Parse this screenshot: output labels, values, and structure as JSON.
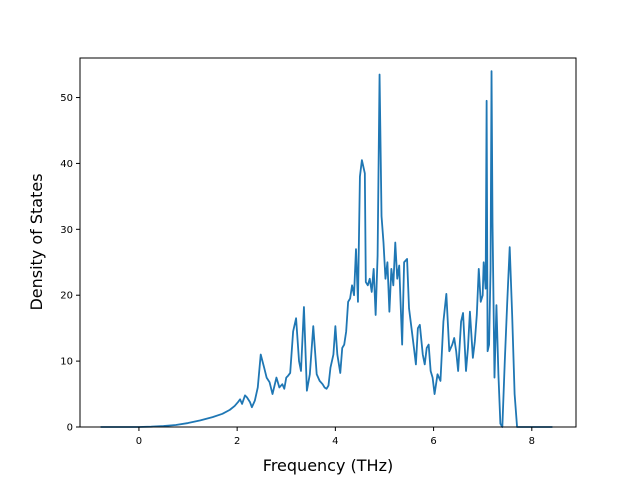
{
  "colors": {
    "line": "#1f77b4",
    "axes": "#000000",
    "background": "#ffffff"
  },
  "chart_data": {
    "type": "line",
    "title": "",
    "xlabel": "Frequency (THz)",
    "ylabel": "Density of States",
    "xlim": [
      -1.2,
      8.9
    ],
    "ylim": [
      0,
      56
    ],
    "xticks": [
      0,
      2,
      4,
      6,
      8
    ],
    "xtick_labels": [
      "0",
      "2",
      "4",
      "6",
      "8"
    ],
    "yticks": [
      0,
      10,
      20,
      30,
      40,
      50
    ],
    "ytick_labels": [
      "0",
      "10",
      "20",
      "30",
      "40",
      "50"
    ],
    "grid": false,
    "legend": "none",
    "series": [
      {
        "color": "#1f77b4",
        "x": [
          -0.78,
          0.0,
          0.25,
          0.5,
          0.75,
          1.0,
          1.25,
          1.5,
          1.7,
          1.85,
          1.95,
          2.02,
          2.06,
          2.1,
          2.16,
          2.2,
          2.26,
          2.3,
          2.36,
          2.42,
          2.48,
          2.55,
          2.6,
          2.66,
          2.72,
          2.8,
          2.86,
          2.92,
          2.96,
          3.0,
          3.04,
          3.08,
          3.14,
          3.2,
          3.26,
          3.3,
          3.36,
          3.42,
          3.48,
          3.55,
          3.62,
          3.68,
          3.74,
          3.78,
          3.82,
          3.86,
          3.9,
          3.96,
          4.0,
          4.04,
          4.1,
          4.14,
          4.18,
          4.22,
          4.26,
          4.3,
          4.34,
          4.38,
          4.42,
          4.46,
          4.5,
          4.54,
          4.6,
          4.62,
          4.66,
          4.7,
          4.74,
          4.78,
          4.82,
          4.86,
          4.9,
          4.94,
          4.98,
          5.02,
          5.06,
          5.1,
          5.14,
          5.18,
          5.22,
          5.26,
          5.3,
          5.36,
          5.4,
          5.46,
          5.5,
          5.55,
          5.6,
          5.64,
          5.68,
          5.72,
          5.78,
          5.82,
          5.86,
          5.9,
          5.94,
          5.98,
          6.02,
          6.08,
          6.14,
          6.2,
          6.26,
          6.32,
          6.38,
          6.42,
          6.46,
          6.5,
          6.56,
          6.6,
          6.66,
          6.7,
          6.74,
          6.8,
          6.84,
          6.88,
          6.92,
          6.96,
          7.0,
          7.02,
          7.04,
          7.06,
          7.08,
          7.1,
          7.13,
          7.16,
          7.18,
          7.2,
          7.24,
          7.28,
          7.32,
          7.36,
          7.4,
          7.45,
          7.5,
          7.55,
          7.6,
          7.65,
          7.7,
          7.75,
          8.0,
          8.42
        ],
        "y": [
          0,
          0,
          0.05,
          0.15,
          0.3,
          0.6,
          1.0,
          1.5,
          2.0,
          2.6,
          3.2,
          3.8,
          4.2,
          3.5,
          4.8,
          4.5,
          3.8,
          3.0,
          4.0,
          6.0,
          11.0,
          9.0,
          7.5,
          6.8,
          5.0,
          7.5,
          6.0,
          6.5,
          5.8,
          7.5,
          7.8,
          8.2,
          14.5,
          16.5,
          10.0,
          8.5,
          18.2,
          5.5,
          8.0,
          15.3,
          8.0,
          7.0,
          6.5,
          6.0,
          5.8,
          6.3,
          9.0,
          11.0,
          15.3,
          11.0,
          8.2,
          12.0,
          12.5,
          14.5,
          19.0,
          19.5,
          21.5,
          20.0,
          27.0,
          19.0,
          38.0,
          40.5,
          38.5,
          22.0,
          21.5,
          22.5,
          20.5,
          24.0,
          17.0,
          26.0,
          53.5,
          32.0,
          28.0,
          22.5,
          25.0,
          17.5,
          24.0,
          21.5,
          28.0,
          22.5,
          24.5,
          12.5,
          25.0,
          25.5,
          18.0,
          15.0,
          12.0,
          9.5,
          15.0,
          15.5,
          11.0,
          9.5,
          12.0,
          12.5,
          8.5,
          7.5,
          5.0,
          8.0,
          7.0,
          16.0,
          20.2,
          11.5,
          12.5,
          13.5,
          11.5,
          8.5,
          16.0,
          17.3,
          8.5,
          12.0,
          17.5,
          10.5,
          13.0,
          17.0,
          24.0,
          19.0,
          20.0,
          25.0,
          23.0,
          21.0,
          49.5,
          11.5,
          12.5,
          24.0,
          54.0,
          31.0,
          7.5,
          18.5,
          8.0,
          0.5,
          0,
          10.0,
          19.0,
          27.3,
          17.0,
          5.0,
          0,
          0,
          0,
          0
        ]
      }
    ]
  }
}
